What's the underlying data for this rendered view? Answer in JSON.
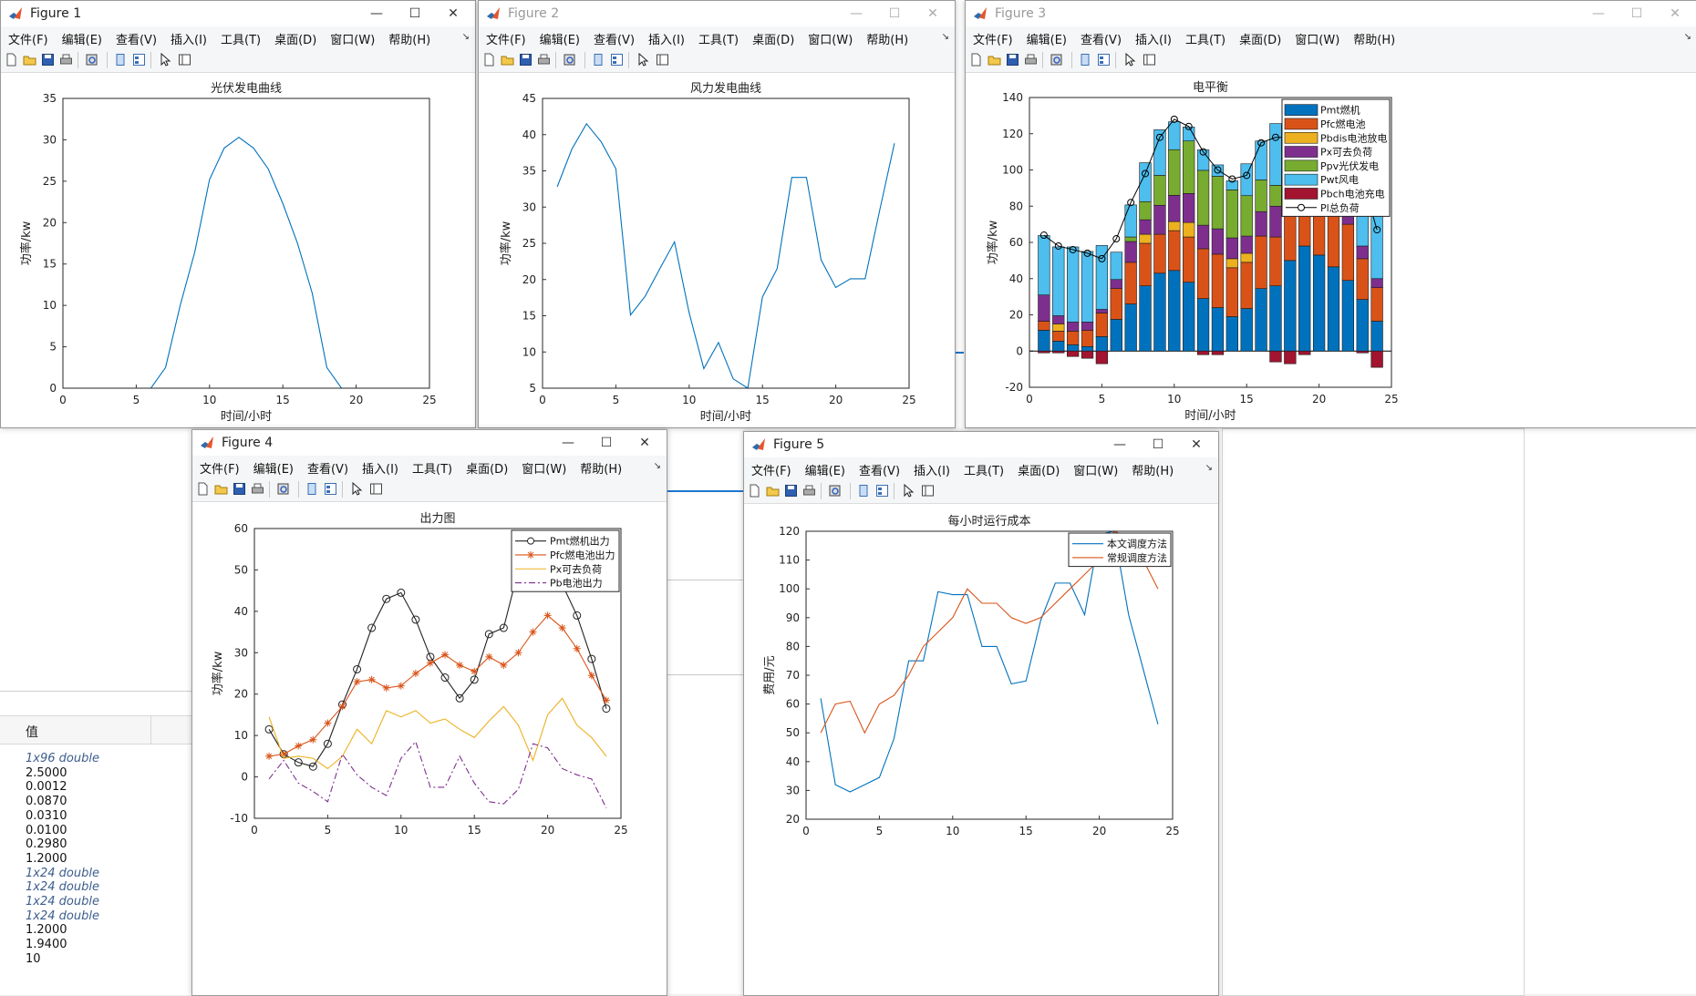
{
  "menu": [
    "文件(F)",
    "编辑(E)",
    "查看(V)",
    "插入(I)",
    "工具(T)",
    "桌面(D)",
    "窗口(W)",
    "帮助(H)"
  ],
  "toolbar_icons": [
    "new-file-icon",
    "open-folder-icon",
    "save-icon",
    "print-icon",
    "print-preview-icon",
    "dock-figure-icon",
    "property-editor-icon",
    "pointer-icon",
    "plot-browser-icon"
  ],
  "workspace": {
    "header": "值",
    "values": [
      "1x96 double",
      "2.5000",
      "0.0012",
      "0.0870",
      "0.0310",
      "0.0100",
      "0.2980",
      "1.2000",
      "1x24 double",
      "1x24 double",
      "1x24 double",
      "1x24 double",
      "1.2000",
      "1.9400",
      "10"
    ]
  },
  "figures": [
    {
      "title": "Figure 1",
      "chart_data": {
        "type": "line",
        "title": "光伏发电曲线",
        "xlabel": "时间/小时",
        "ylabel": "功率/kw",
        "xlim": [
          0,
          25
        ],
        "ylim": [
          0,
          35
        ],
        "xticks": [
          0,
          5,
          10,
          15,
          20,
          25
        ],
        "yticks": [
          0,
          5,
          10,
          15,
          20,
          25,
          30,
          35
        ],
        "series": [
          {
            "color": "#0072bd",
            "x": [
              1,
              2,
              3,
              4,
              5,
              6,
              7,
              8,
              9,
              10,
              11,
              12,
              13,
              14,
              15,
              16,
              17,
              18,
              19,
              20,
              21,
              22,
              23,
              24
            ],
            "values": [
              0,
              0,
              0,
              0,
              0,
              0,
              2.5,
              10,
              16.5,
              25.2,
              29,
              30.3,
              29,
              26.5,
              22.3,
              17.5,
              11.5,
              2.5,
              0,
              0,
              0,
              0,
              0,
              0
            ]
          }
        ]
      }
    },
    {
      "title": "Figure 2",
      "chart_data": {
        "type": "line",
        "title": "风力发电曲线",
        "xlabel": "时间/小时",
        "ylabel": "功率/kw",
        "xlim": [
          0,
          25
        ],
        "ylim": [
          5,
          45
        ],
        "xticks": [
          0,
          5,
          10,
          15,
          20,
          25
        ],
        "yticks": [
          5,
          10,
          15,
          20,
          25,
          30,
          35,
          40,
          45
        ],
        "series": [
          {
            "color": "#0072bd",
            "x": [
              1,
              2,
              3,
              4,
              5,
              6,
              7,
              8,
              9,
              10,
              11,
              12,
              13,
              14,
              15,
              16,
              17,
              18,
              19,
              20,
              21,
              22,
              23,
              24
            ],
            "values": [
              32.8,
              38,
              41.5,
              39,
              35.3,
              15.1,
              17.7,
              21.5,
              25.2,
              15.4,
              7.7,
              11.3,
              6.3,
              5,
              17.6,
              21.5,
              34.1,
              34.1,
              22.7,
              18.9,
              20.1,
              20.1,
              29.6,
              38.8
            ]
          }
        ]
      }
    },
    {
      "title": "Figure 3",
      "chart_data": {
        "type": "bar",
        "stacked": true,
        "title": "电平衡",
        "xlabel": "时间/小时",
        "ylabel": "功率/kw",
        "xlim": [
          0,
          25
        ],
        "ylim": [
          -20,
          140
        ],
        "xticks": [
          0,
          5,
          10,
          15,
          20,
          25
        ],
        "yticks": [
          -20,
          0,
          20,
          40,
          60,
          80,
          100,
          120,
          140
        ],
        "legend_position": "top-right",
        "x": [
          1,
          2,
          3,
          4,
          5,
          6,
          7,
          8,
          9,
          10,
          11,
          12,
          13,
          14,
          15,
          16,
          17,
          18,
          19,
          20,
          21,
          22,
          23,
          24
        ],
        "series": [
          {
            "name": "Pmt燃机",
            "color": "#0072bd",
            "values": [
              11.5,
              5.5,
              3.5,
              2.5,
              8,
              17.5,
              26,
              36,
              43,
              44.5,
              38,
              29,
              24,
              19,
              23.5,
              34.5,
              36,
              50,
              58,
              53,
              46.5,
              39,
              28.5,
              16.5
            ]
          },
          {
            "name": "Pfc燃电池",
            "color": "#d95319",
            "values": [
              5,
              5.5,
              7.5,
              9,
              13,
              17,
              23,
              23.5,
              21.5,
              22,
              25,
              27.5,
              29.5,
              27,
              25.5,
              29,
              27,
              30,
              39,
              35,
              31,
              31,
              22.5,
              18.5
            ]
          },
          {
            "name": "Pbdis电池放电",
            "color": "#edb120",
            "values": [
              0,
              4,
              0,
              0,
              0,
              0,
              0,
              5,
              0,
              5,
              8,
              0,
              0,
              5,
              5,
              0,
              0,
              0,
              0,
              0,
              0,
              0,
              0,
              0
            ]
          },
          {
            "name": "Px可去负荷",
            "color": "#7e2f8e",
            "values": [
              14.5,
              4.5,
              5,
              4.5,
              2,
              5,
              11.5,
              8,
              16,
              14.5,
              16,
              13,
              14,
              11.5,
              9.5,
              13.5,
              17,
              12.5,
              15,
              19,
              12.5,
              9.5,
              7,
              5
            ]
          },
          {
            "name": "Ppv光伏发电",
            "color": "#77ac30",
            "values": [
              0,
              0,
              0,
              0,
              0,
              0,
              2.5,
              10,
              16.5,
              25.2,
              29,
              30.3,
              29,
              26.5,
              22.3,
              17.5,
              11.5,
              2.5,
              0,
              0,
              0,
              0,
              0,
              0
            ]
          },
          {
            "name": "Pwt风电",
            "color": "#4dbeee",
            "values": [
              32.8,
              38,
              41.5,
              39,
              35.3,
              15.1,
              17.7,
              21.5,
              25.2,
              15.4,
              7.7,
              11.3,
              6.3,
              5,
              17.6,
              21.5,
              34.1,
              34.1,
              22.7,
              18.9,
              20.1,
              20.1,
              29.6,
              38.8
            ]
          },
          {
            "name": "Pbch电池充电",
            "color": "#a2142f",
            "values": [
              -1,
              -1,
              -3,
              -4,
              -7,
              0,
              0,
              0,
              0,
              0,
              0,
              -2,
              -2,
              0,
              0,
              0,
              -6,
              -7,
              -2,
              0,
              0,
              0,
              -1,
              -9
            ]
          }
        ],
        "line_series": {
          "name": "Pl总负荷",
          "color": "#000000",
          "values": [
            64,
            58,
            56,
            54,
            51,
            62,
            82,
            98,
            118,
            128,
            124,
            110,
            100,
            95,
            97,
            115,
            118,
            118,
            123,
            137,
            120,
            108,
            95,
            67
          ]
        }
      }
    },
    {
      "title": "Figure 4",
      "chart_data": {
        "type": "line",
        "title": "出力图",
        "xlabel": "",
        "ylabel": "功率/kw",
        "xlim": [
          0,
          25
        ],
        "ylim": [
          -10,
          60
        ],
        "xticks": [
          0,
          5,
          10,
          15,
          20,
          25
        ],
        "yticks": [
          -10,
          0,
          10,
          20,
          30,
          40,
          50,
          60
        ],
        "legend_position": "top-right",
        "x": [
          1,
          2,
          3,
          4,
          5,
          6,
          7,
          8,
          9,
          10,
          11,
          12,
          13,
          14,
          15,
          16,
          17,
          18,
          19,
          20,
          21,
          22,
          23,
          24
        ],
        "series": [
          {
            "name": "Pmt燃机出力",
            "color": "#222222",
            "marker": "circle",
            "dash": "",
            "values": [
              11.5,
              5.5,
              3.5,
              2.5,
              8,
              17.5,
              26,
              36,
              43,
              44.5,
              38,
              29,
              24,
              19,
              23.5,
              34.5,
              36,
              50,
              58,
              53,
              46.5,
              39,
              28.5,
              16.5
            ]
          },
          {
            "name": "Pfc燃电池出力",
            "color": "#d95319",
            "marker": "star",
            "dash": "",
            "values": [
              5,
              5.5,
              7.5,
              9,
              13,
              17,
              23,
              23.5,
              21.5,
              22,
              25,
              27.5,
              29.5,
              27,
              25.5,
              29,
              27,
              30,
              35,
              39,
              36,
              31,
              24.5,
              18.5
            ]
          },
          {
            "name": "Px可去负荷",
            "color": "#edb120",
            "marker": "",
            "dash": "",
            "values": [
              14.5,
              4.5,
              5,
              4.5,
              2,
              5,
              11.5,
              8,
              16,
              14.5,
              16,
              13,
              14,
              11.5,
              9.5,
              13.5,
              17,
              12.5,
              4,
              15,
              19,
              12.5,
              9.5,
              5
            ]
          },
          {
            "name": "Pb电池出力",
            "color": "#7e2f8e",
            "marker": "",
            "dash": "7,3,2,3",
            "values": [
              -0.5,
              4,
              -1.5,
              -3.5,
              -6,
              5.5,
              0.5,
              -2.5,
              -4.5,
              4.5,
              8.5,
              -2.5,
              -2.5,
              5,
              -1.5,
              -6,
              -6.5,
              -3,
              8,
              7,
              2,
              0.5,
              -0.5,
              -7.5
            ]
          }
        ]
      }
    },
    {
      "title": "Figure 5",
      "chart_data": {
        "type": "line",
        "title": "每小时运行成本",
        "xlabel": "",
        "ylabel": "费用/元",
        "xlim": [
          0,
          25
        ],
        "ylim": [
          20,
          120
        ],
        "xticks": [
          0,
          5,
          10,
          15,
          20,
          25
        ],
        "yticks": [
          20,
          30,
          40,
          50,
          60,
          70,
          80,
          90,
          100,
          110,
          120
        ],
        "legend_position": "top-right",
        "x": [
          1,
          2,
          3,
          4,
          5,
          6,
          7,
          8,
          9,
          10,
          11,
          12,
          13,
          14,
          15,
          16,
          17,
          18,
          19,
          20,
          21,
          22,
          23,
          24
        ],
        "series": [
          {
            "name": "本文调度方法",
            "color": "#0072bd",
            "values": [
              62,
              32,
              29.5,
              32,
              34.5,
              48,
              75,
              75,
              99,
              98,
              98,
              80,
              80,
              67,
              68,
              89,
              102,
              102,
              91,
              119,
              120,
              91,
              72,
              53
            ]
          },
          {
            "name": "常规调度方法",
            "color": "#d95319",
            "values": [
              50,
              60,
              61,
              50,
              60,
              63,
              70,
              80,
              85,
              90,
              100,
              95,
              95,
              90,
              88,
              90,
              95,
              100,
              105,
              110,
              120,
              118,
              110,
              100
            ]
          }
        ]
      }
    }
  ]
}
